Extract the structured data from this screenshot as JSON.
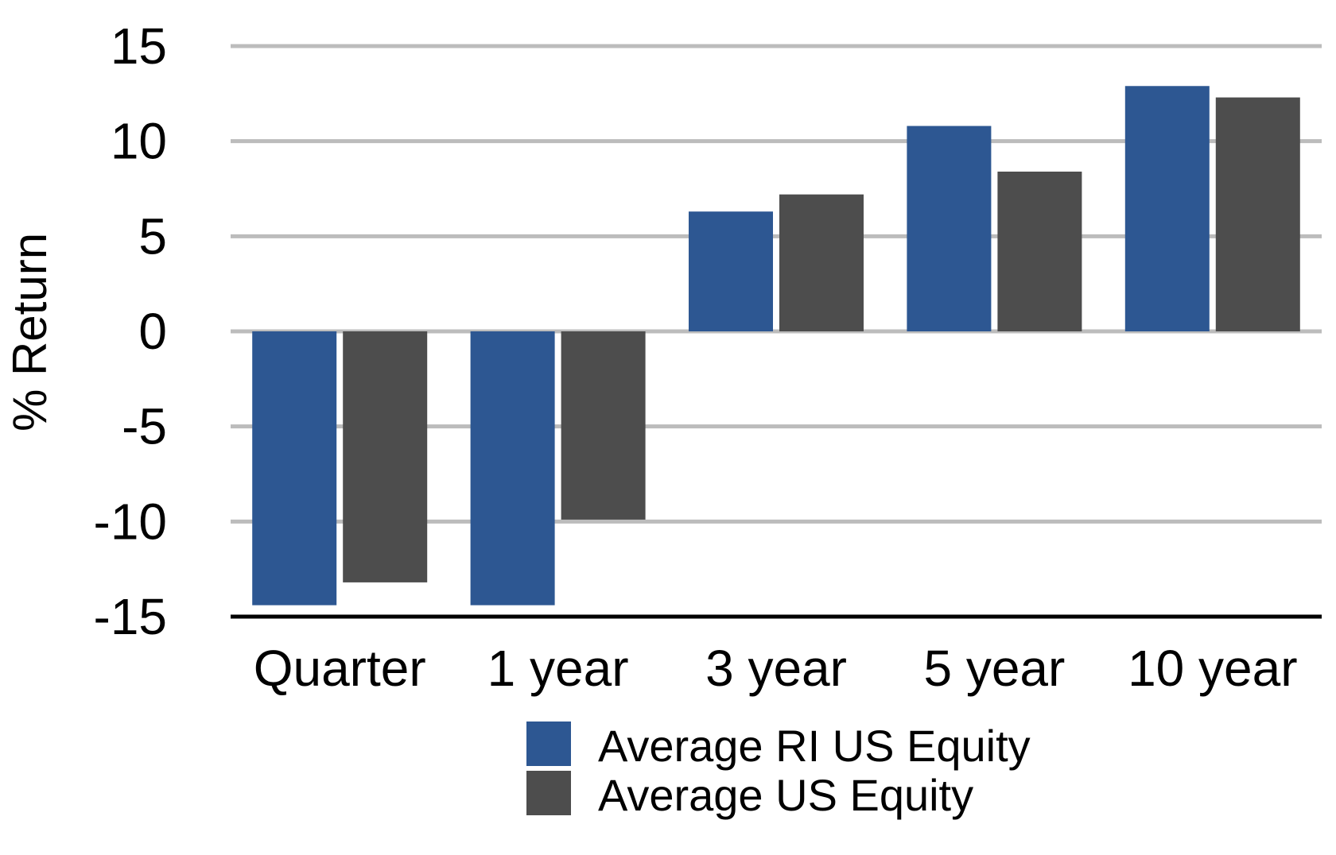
{
  "chart_data": {
    "type": "bar",
    "ylabel": "% Return",
    "xlabel": "",
    "ylim": [
      -15,
      15
    ],
    "yticks": [
      15,
      10,
      5,
      0,
      -5,
      -10,
      -15
    ],
    "grid": true,
    "legend_position": "bottom-center",
    "categories": [
      "Quarter",
      "1 year",
      "3 year",
      "5 year",
      "10 year"
    ],
    "series": [
      {
        "name": "Average RI US Equity",
        "color": "#2d5792",
        "values": [
          -14.4,
          -14.4,
          6.3,
          10.8,
          12.9
        ]
      },
      {
        "name": "Average US Equity",
        "color": "#4d4d4d",
        "values": [
          -13.2,
          -9.9,
          7.2,
          8.4,
          12.3
        ]
      }
    ]
  }
}
